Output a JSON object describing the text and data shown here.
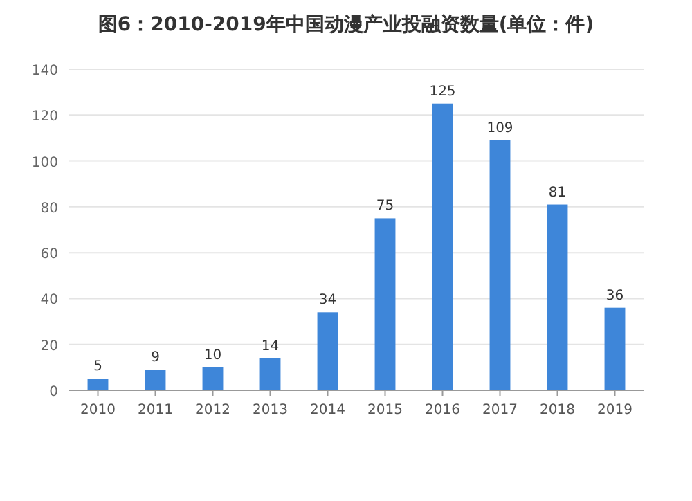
{
  "chart_data": {
    "type": "bar",
    "title": "图6：2010-2019年中国动漫产业投融资数量(单位：件)",
    "categories": [
      "2010",
      "2011",
      "2012",
      "2013",
      "2014",
      "2015",
      "2016",
      "2017",
      "2018",
      "2019"
    ],
    "values": [
      5,
      9,
      10,
      14,
      34,
      75,
      125,
      109,
      81,
      36
    ],
    "color": "#3e86d9",
    "ylim": [
      0,
      140
    ],
    "yticks": [
      0,
      20,
      40,
      60,
      80,
      100,
      120,
      140
    ],
    "grid": "y",
    "data_labels": true
  }
}
